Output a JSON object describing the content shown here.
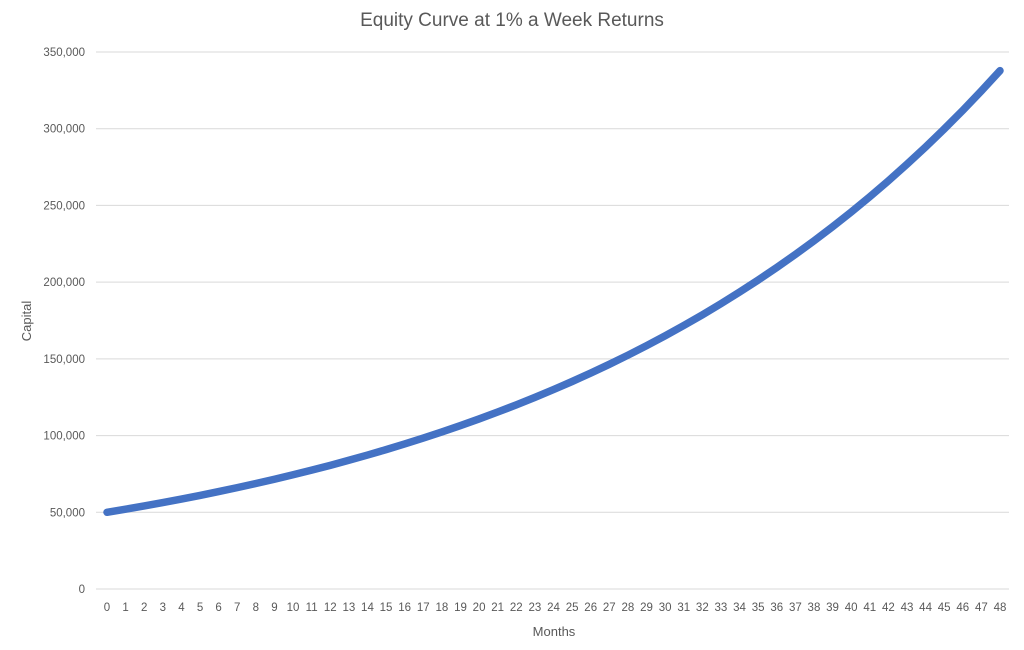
{
  "colors": {
    "series": "#4472c4",
    "gridline": "#d9d9d9",
    "text": "#595959"
  },
  "chart_data": {
    "type": "line",
    "title": "Equity Curve at 1% a Week Returns",
    "xlabel": "Months",
    "ylabel": "Capital",
    "ylim": [
      0,
      350000
    ],
    "grid": true,
    "legend": "none",
    "y_ticks": [
      "0",
      "50,000",
      "100,000",
      "150,000",
      "200,000",
      "250,000",
      "300,000",
      "350,000"
    ],
    "y_tick_values": [
      0,
      50000,
      100000,
      150000,
      200000,
      250000,
      300000,
      350000
    ],
    "x": [
      0,
      1,
      2,
      3,
      4,
      5,
      6,
      7,
      8,
      9,
      10,
      11,
      12,
      13,
      14,
      15,
      16,
      17,
      18,
      19,
      20,
      21,
      22,
      23,
      24,
      25,
      26,
      27,
      28,
      29,
      30,
      31,
      32,
      33,
      34,
      35,
      36,
      37,
      38,
      39,
      40,
      41,
      42,
      43,
      44,
      45,
      46,
      47,
      48
    ],
    "x_tick_labels": [
      "0",
      "1",
      "2",
      "3",
      "4",
      "5",
      "6",
      "7",
      "8",
      "9",
      "10",
      "11",
      "12",
      "13",
      "14",
      "15",
      "16",
      "17",
      "18",
      "19",
      "20",
      "21",
      "22",
      "23",
      "24",
      "25",
      "26",
      "27",
      "28",
      "29",
      "30",
      "31",
      "32",
      "33",
      "34",
      "35",
      "36",
      "37",
      "38",
      "39",
      "40",
      "41",
      "42",
      "43",
      "44",
      "45",
      "46",
      "47",
      "48"
    ],
    "series": [
      {
        "values": [
          50000,
          52030,
          54143,
          56341,
          58629,
          61010,
          63487,
          66065,
          68748,
          71539,
          74444,
          77467,
          80612,
          83886,
          87292,
          90836,
          94525,
          98363,
          102357,
          106514,
          110839,
          115339,
          120022,
          124896,
          129967,
          135245,
          140736,
          146451,
          152398,
          158586,
          165025,
          171726,
          178699,
          185955,
          193506,
          201363,
          209539,
          218048,
          226902,
          236115,
          245702,
          255679,
          266061,
          276864,
          288106,
          299805,
          311979,
          324647,
          337829
        ]
      }
    ]
  }
}
